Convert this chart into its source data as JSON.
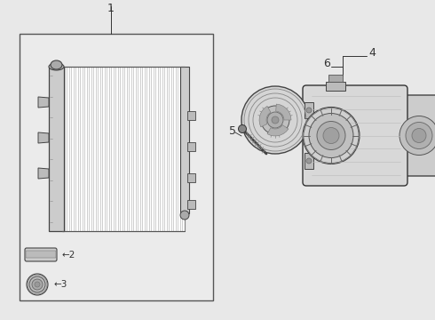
{
  "bg_color": "#e8e8e8",
  "line_color": "#333333",
  "box_bg": "#e8e8e8",
  "white": "#ffffff",
  "fin_color": "#888888",
  "part_fill": "#d0d0d0",
  "part_edge": "#444444"
}
